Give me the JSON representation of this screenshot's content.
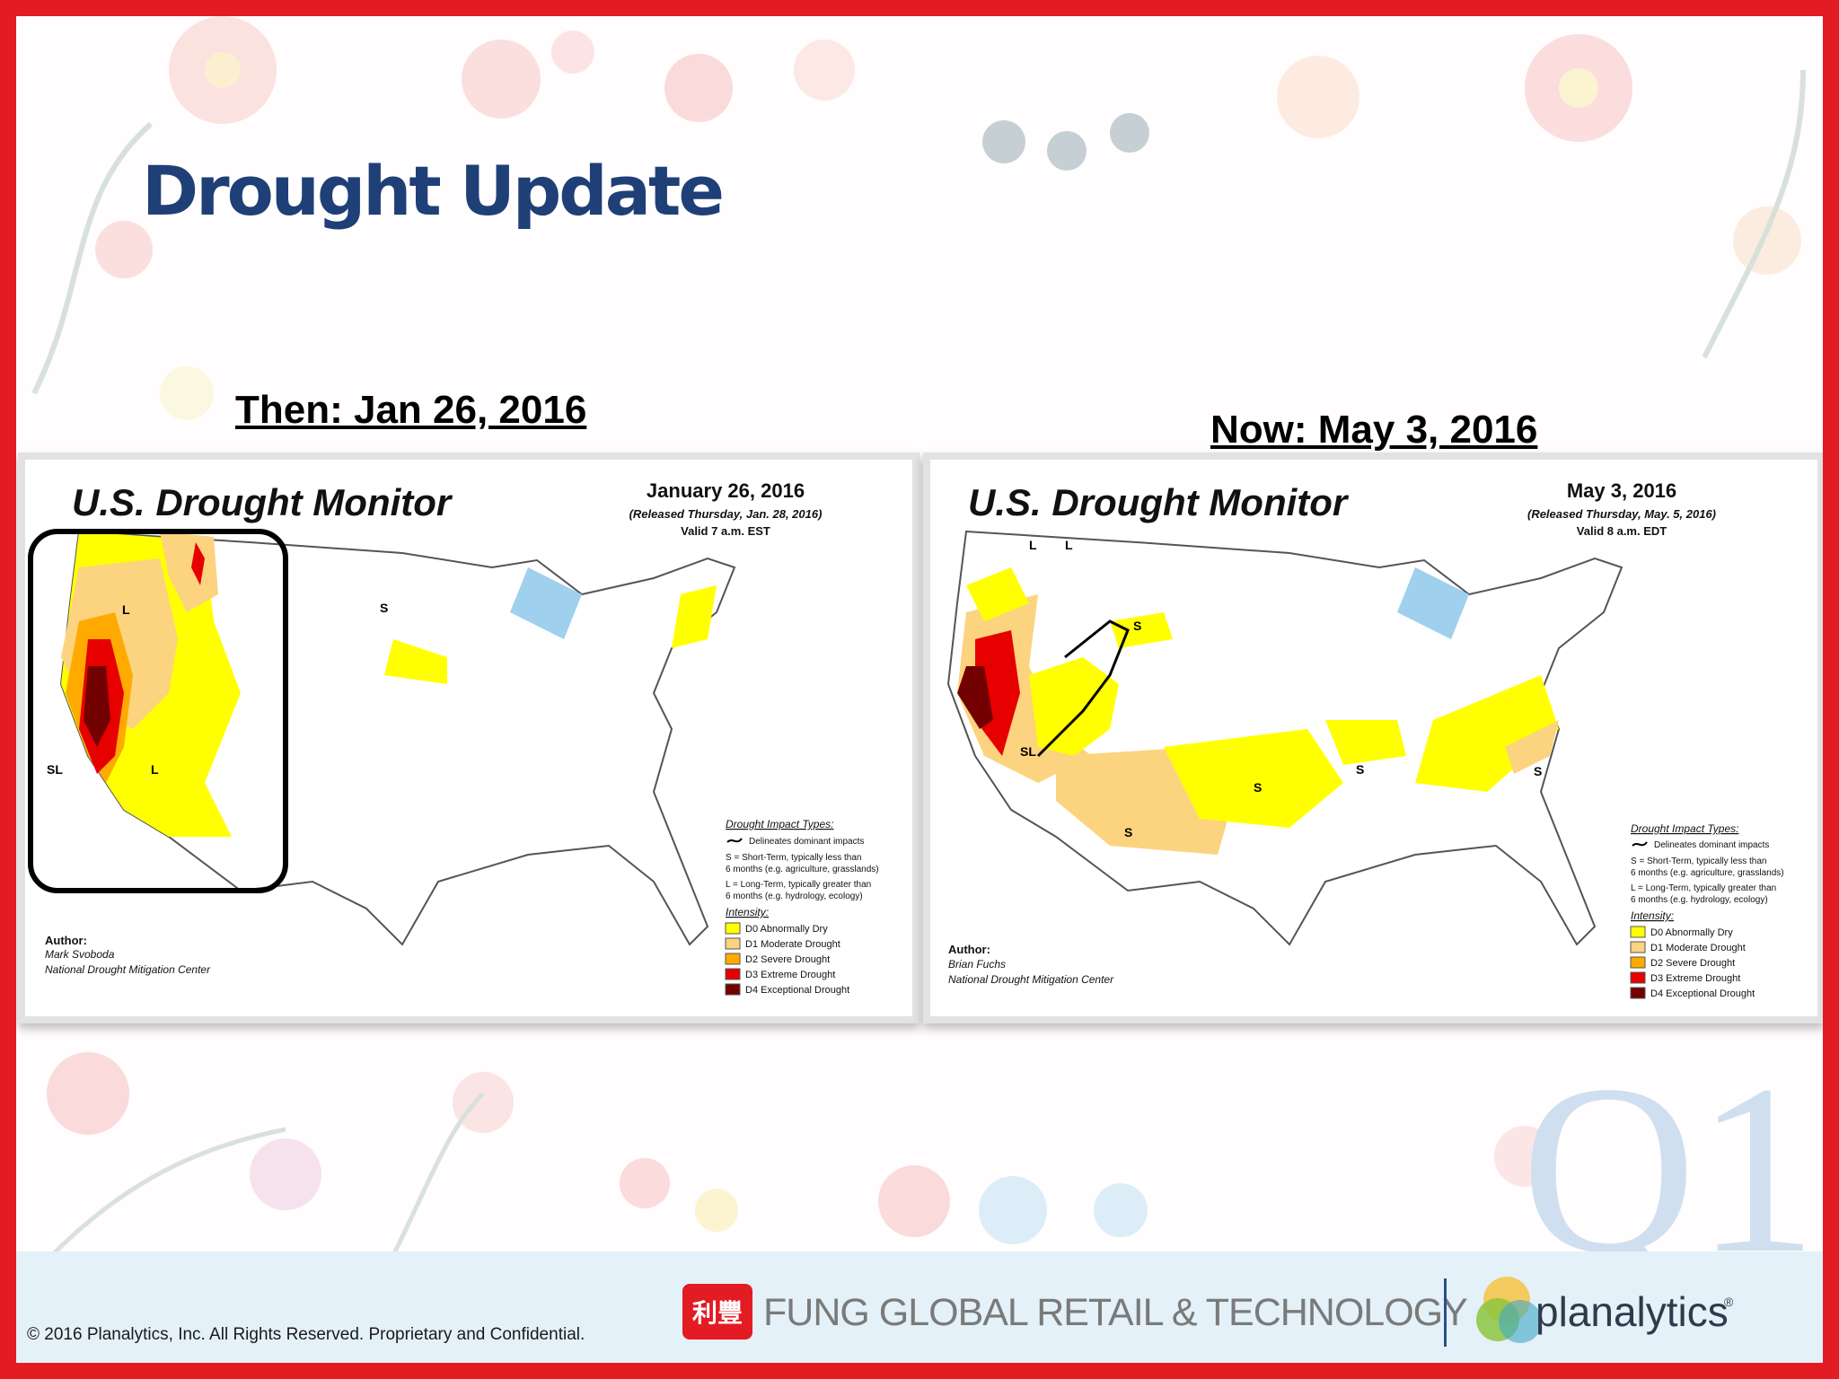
{
  "slide": {
    "title": "Drought Update",
    "then_caption": "Then: Jan 26, 2016",
    "now_caption": "Now: May 3, 2016",
    "watermark": "Q1",
    "accent_color": "#e31b23",
    "title_color": "#1f3f77"
  },
  "maps": [
    {
      "heading": "U.S. Drought Monitor",
      "date": "January 26, 2016",
      "released": "(Released Thursday, Jan. 28, 2016)",
      "valid": "Valid 7 a.m. EST",
      "author_label": "Author:",
      "author_name": "Mark Svoboda",
      "author_org": "National Drought Mitigation Center",
      "impact_title": "Drought Impact Types:",
      "impact_line": "Delineates dominant impacts",
      "impact_s1": "S = Short-Term, typically less than",
      "impact_s2": "6 months (e.g. agriculture, grasslands)",
      "impact_l1": "L = Long-Term, typically greater than",
      "impact_l2": "6 months (e.g. hydrology, ecology)",
      "intensity_title": "Intensity:",
      "legend": [
        "D0 Abnormally Dry",
        "D1 Moderate Drought",
        "D2 Severe Drought",
        "D3 Extreme Drought",
        "D4 Exceptional Drought"
      ]
    },
    {
      "heading": "U.S. Drought Monitor",
      "date": "May 3, 2016",
      "released": "(Released Thursday, May. 5, 2016)",
      "valid": "Valid 8 a.m. EDT",
      "author_label": "Author:",
      "author_name": "Brian Fuchs",
      "author_org": "National Drought Mitigation Center",
      "impact_title": "Drought Impact Types:",
      "impact_line": "Delineates dominant impacts",
      "impact_s1": "S = Short-Term, typically less than",
      "impact_s2": "6 months (e.g. agriculture, grasslands)",
      "impact_l1": "L = Long-Term, typically greater than",
      "impact_l2": "6 months (e.g. hydrology, ecology)",
      "intensity_title": "Intensity:",
      "legend": [
        "D0 Abnormally Dry",
        "D1 Moderate Drought",
        "D2 Severe Drought",
        "D3 Extreme Drought",
        "D4 Exceptional Drought"
      ]
    }
  ],
  "legend_colors": [
    "#ffff00",
    "#fcd37f",
    "#ffaa00",
    "#e60000",
    "#730000"
  ],
  "footer": {
    "copyright": "© 2016 Planalytics, Inc. All Rights Reserved. Proprietary and Confidential.",
    "fung_logo_text": "利豐",
    "fung": "FUNG GLOBAL RETAIL & TECHNOLOGY",
    "planalytics": "planalytics",
    "trademark": "®"
  }
}
